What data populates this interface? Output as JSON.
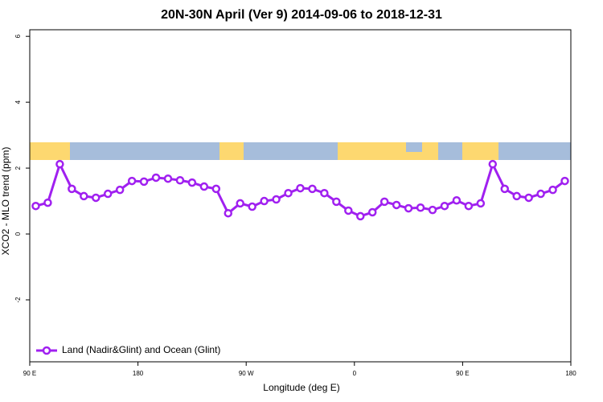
{
  "chart_data": {
    "type": "line",
    "title": "20N-30N April (Ver 9)   2014-09-06 to 2018-12-31",
    "x_label": "Longitude (deg E)",
    "y_label": "XCO2 - MLO trend (ppm)",
    "x": [
      95,
      105,
      115,
      125,
      135,
      145,
      155,
      165,
      175,
      185,
      195,
      205,
      215,
      225,
      235,
      245,
      255,
      265,
      275,
      285,
      295,
      305,
      315,
      325,
      335,
      345,
      355,
      365,
      375,
      385,
      395,
      405,
      415,
      425,
      435,
      445,
      455,
      465,
      475,
      485,
      495,
      505,
      515,
      525,
      535
    ],
    "series": [
      {
        "name": "Land (Nadir&Glint) and Ocean (Glint)",
        "color": "#a020f0",
        "values": [
          0.85,
          0.95,
          2.12,
          1.37,
          1.15,
          1.1,
          1.22,
          1.34,
          1.61,
          1.59,
          1.71,
          1.68,
          1.63,
          1.56,
          1.44,
          1.37,
          0.63,
          0.93,
          0.83,
          1.0,
          1.05,
          1.24,
          1.39,
          1.37,
          1.24,
          0.98,
          0.71,
          0.54,
          0.66,
          0.98,
          0.88,
          0.78,
          0.8,
          0.73,
          0.85,
          1.02,
          0.85,
          0.93,
          2.12,
          1.37,
          1.15,
          1.1,
          1.22,
          1.34,
          1.61
        ]
      }
    ],
    "xlim": [
      90,
      540
    ],
    "xticks": [
      {
        "value": 90,
        "label": "90 E"
      },
      180,
      {
        "value": 270,
        "label": "90 W"
      },
      {
        "value": 360,
        "label": "0"
      },
      {
        "value": 450,
        "label": "90 E"
      },
      {
        "value": 540,
        "label": "180"
      }
    ],
    "ylim": [
      -3.88,
      6.2
    ],
    "yticks": [
      -2,
      0,
      2,
      4,
      6
    ],
    "legend": "bottom-left"
  }
}
